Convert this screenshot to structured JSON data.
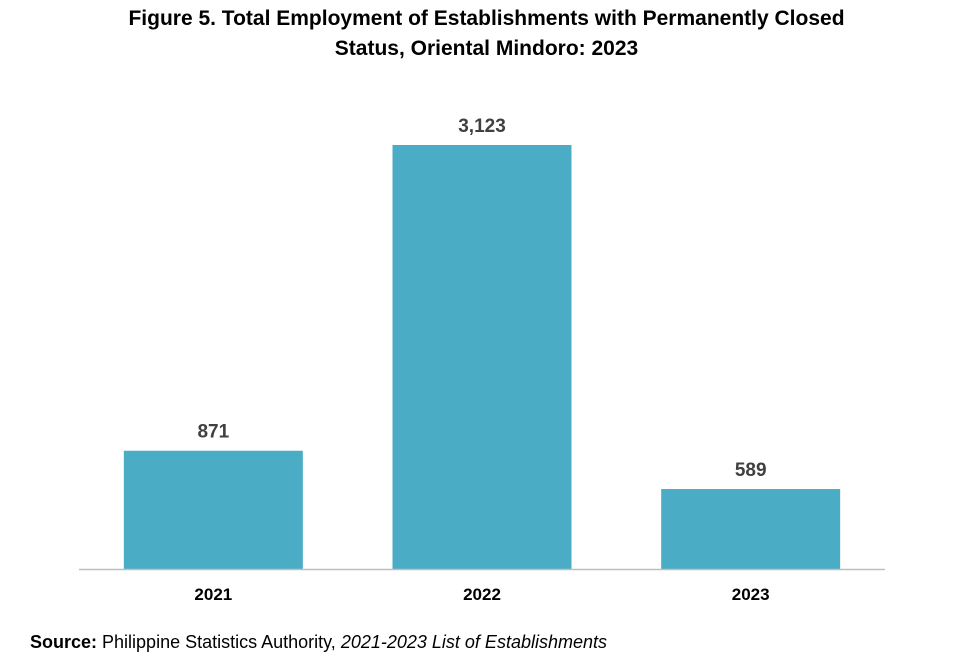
{
  "chart_data": {
    "type": "bar",
    "title_lines": [
      "Figure 5. Total Employment of Establishments with Permanently Closed",
      "Status, Oriental Mindoro: 2023"
    ],
    "categories": [
      "2021",
      "2022",
      "2023"
    ],
    "values": [
      871,
      3123,
      589
    ],
    "value_labels": [
      "871",
      "3,123",
      "589"
    ],
    "xlabel": "",
    "ylabel": "",
    "ylim": [
      0,
      3500
    ],
    "grid": false,
    "legend": "none",
    "bar_color": "#4BACC6",
    "axis_color": "#BFBFBF",
    "label_color": "#404040"
  },
  "source": {
    "label": "Source:",
    "text": " Philippine Statistics Authority, ",
    "italic": "2021-2023 List of Establishments"
  }
}
